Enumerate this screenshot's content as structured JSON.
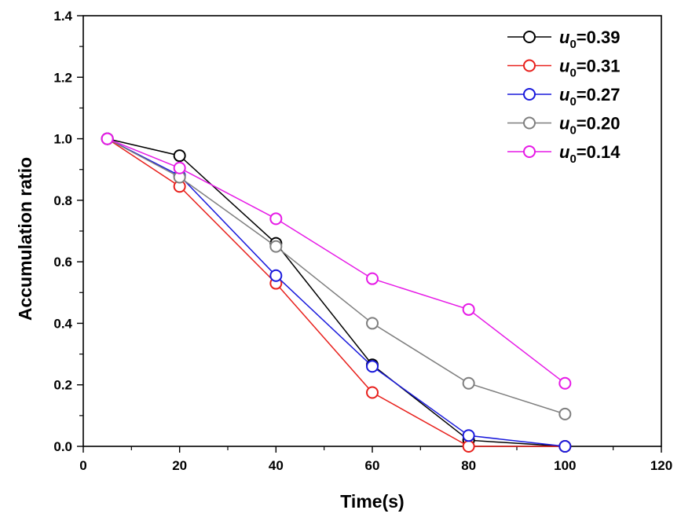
{
  "chart_data": {
    "type": "line",
    "title": "",
    "xlabel": "Time(s)",
    "ylabel": "Accumulation ratio",
    "xlim": [
      0,
      120
    ],
    "ylim": [
      0.0,
      1.4
    ],
    "x_ticks": [
      0,
      20,
      40,
      60,
      80,
      100,
      120
    ],
    "y_ticks": [
      0.0,
      0.2,
      0.4,
      0.6,
      0.8,
      1.0,
      1.2,
      1.4
    ],
    "x_tick_labels": [
      "0",
      "20",
      "40",
      "60",
      "80",
      "100",
      "120"
    ],
    "y_tick_labels": [
      "0.0",
      "0.2",
      "0.4",
      "0.6",
      "0.8",
      "1.0",
      "1.2",
      "1.4"
    ],
    "grid": false,
    "legend_position": "top-right",
    "series": [
      {
        "name": "u0=0.39",
        "var": "u",
        "sub": "0",
        "value_text": "=0.39",
        "color": "#000000",
        "x": [
          5,
          20,
          40,
          60,
          80,
          100
        ],
        "y": [
          1.0,
          0.945,
          0.66,
          0.265,
          0.02,
          0.0
        ]
      },
      {
        "name": "u0=0.31",
        "var": "u",
        "sub": "0",
        "value_text": "=0.31",
        "color": "#e8201c",
        "x": [
          5,
          20,
          40,
          60,
          80,
          100
        ],
        "y": [
          1.0,
          0.845,
          0.53,
          0.175,
          0.0,
          0.0
        ]
      },
      {
        "name": "u0=0.27",
        "var": "u",
        "sub": "0",
        "value_text": "=0.27",
        "color": "#1a1adc",
        "x": [
          5,
          20,
          40,
          60,
          80,
          100
        ],
        "y": [
          1.0,
          0.88,
          0.555,
          0.26,
          0.035,
          0.0
        ]
      },
      {
        "name": "u0=0.20",
        "var": "u",
        "sub": "0",
        "value_text": "=0.20",
        "color": "#7f7f7f",
        "x": [
          5,
          20,
          40,
          60,
          80,
          100
        ],
        "y": [
          1.0,
          0.875,
          0.65,
          0.4,
          0.205,
          0.105
        ]
      },
      {
        "name": "u0=0.14",
        "var": "u",
        "sub": "0",
        "value_text": "=0.14",
        "color": "#e61ae6",
        "x": [
          5,
          20,
          40,
          60,
          80,
          100
        ],
        "y": [
          1.0,
          0.905,
          0.74,
          0.545,
          0.445,
          0.205
        ]
      }
    ]
  }
}
